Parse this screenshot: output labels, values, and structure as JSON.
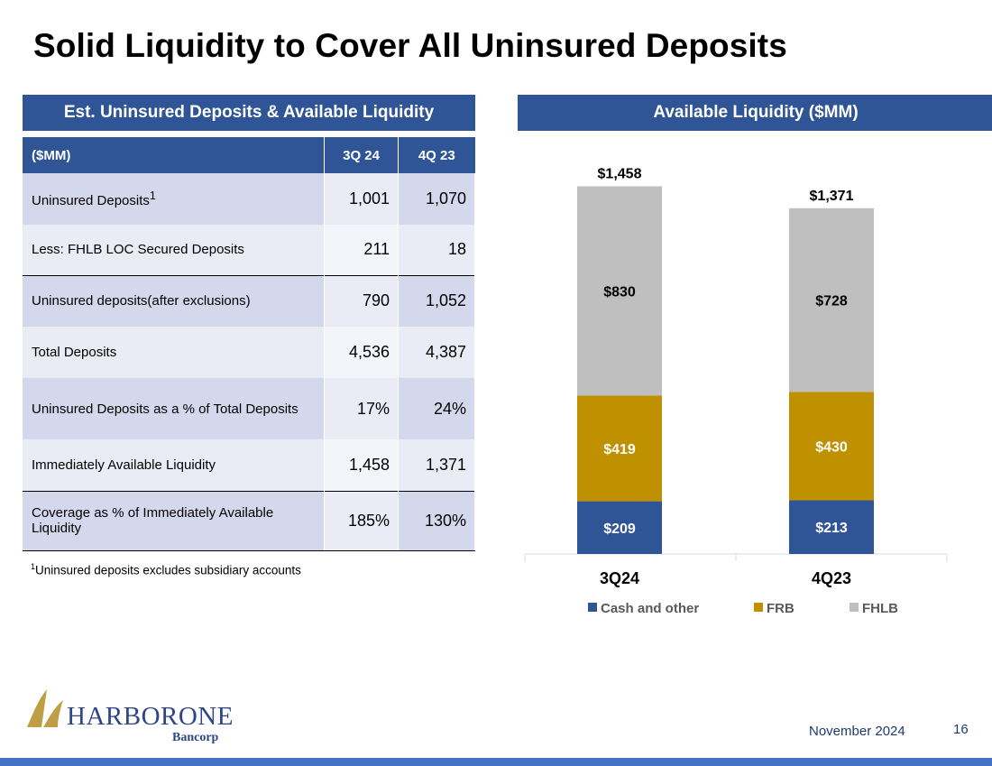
{
  "title": "Solid Liquidity to Cover All Uninsured Deposits",
  "left_panel": {
    "header": "Est. Uninsured Deposits & Available Liquidity",
    "columns": [
      "($MM)",
      "3Q 24",
      "4Q 23"
    ],
    "rows": [
      {
        "label": "Uninsured Deposits",
        "sup": "1",
        "v1": "1,001",
        "v2": "1,070"
      },
      {
        "label": "Less: FHLB LOC Secured Deposits",
        "sup": "",
        "v1": "211",
        "v2": "18"
      },
      {
        "label": "Uninsured deposits(after exclusions)",
        "sup": "",
        "v1": "790",
        "v2": "1,052"
      },
      {
        "label": "Total Deposits",
        "sup": "",
        "v1": "4,536",
        "v2": "4,387"
      },
      {
        "label": "Uninsured Deposits as a % of Total Deposits",
        "sup": "",
        "v1": "17%",
        "v2": "24%"
      },
      {
        "label": "Immediately Available Liquidity",
        "sup": "",
        "v1": "1,458",
        "v2": "1,371"
      },
      {
        "label": "Coverage as % of Immediately Available Liquidity",
        "sup": "",
        "v1": "185%",
        "v2": "130%"
      }
    ],
    "footnote_sup": "1",
    "footnote": "Uninsured deposits excludes subsidiary accounts"
  },
  "right_panel": {
    "header": "Available Liquidity ($MM)"
  },
  "chart_data": {
    "type": "bar",
    "stacked": true,
    "categories": [
      "3Q24",
      "4Q23"
    ],
    "series": [
      {
        "name": "Cash and other",
        "color": "#2F5597",
        "values": [
          209,
          213
        ],
        "labels": [
          "$209",
          "$213"
        ]
      },
      {
        "name": "FRB",
        "color": "#BF9000",
        "values": [
          419,
          430
        ],
        "labels": [
          "$419",
          "$430"
        ]
      },
      {
        "name": "FHLB",
        "color": "#BFBFBF",
        "values": [
          830,
          728
        ],
        "labels": [
          "$830",
          "$728"
        ]
      }
    ],
    "totals": [
      "$1,458",
      "$1,371"
    ],
    "legend_position": "bottom",
    "grid": false
  },
  "footer": {
    "logo_main": "HARBORONE",
    "logo_sub": "Bancorp",
    "date": "November 2024",
    "page": "16"
  }
}
